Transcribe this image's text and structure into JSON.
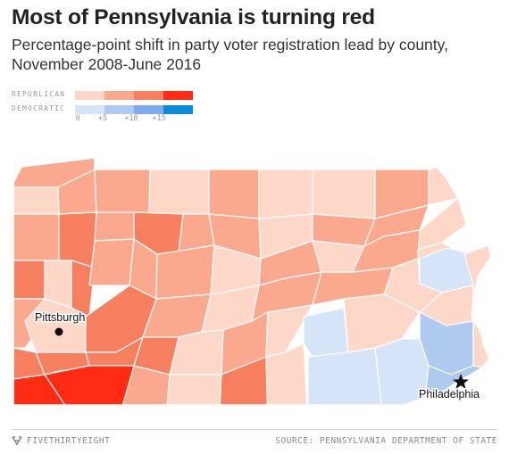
{
  "title": "Most of Pennsylvania is turning red",
  "subtitle": "Percentage-point shift in party voter registration lead by county, November 2008-June 2016",
  "legend": {
    "republican_label": "REPUBLICAN",
    "democratic_label": "DEMOCRATIC",
    "ticks": [
      "0",
      "+5",
      "+10",
      "+15"
    ],
    "republican_colors": [
      "#fdd8c9",
      "#faa98e",
      "#f67f60",
      "#ff2b12"
    ],
    "democratic_colors": [
      "#d5e4f7",
      "#aecbef",
      "#7eacea",
      "#0d8ad8"
    ]
  },
  "cities": {
    "pittsburgh": "Pittsburgh",
    "philadelphia": "Philadelphia"
  },
  "footer": {
    "brand": "FIVETHIRTYEIGHT",
    "source": "SOURCE: PENNSYLVANIA DEPARTMENT OF STATE"
  },
  "colors": {
    "r1": "#fdd8c9",
    "r2": "#faa98e",
    "r3": "#f67f60",
    "r4": "#ff2b12",
    "d1": "#d5e4f7",
    "d2": "#aecbef",
    "d3": "#7eacea",
    "d4": "#0d8ad8"
  }
}
